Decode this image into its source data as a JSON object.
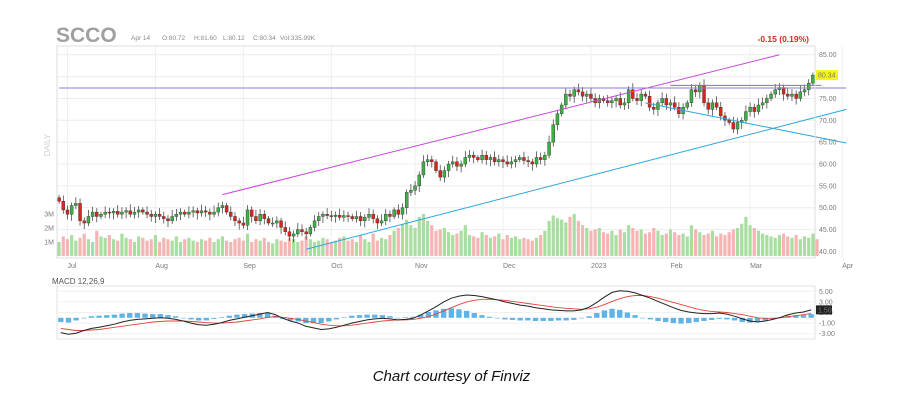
{
  "header": {
    "ticker": "SCCO",
    "date": "Apr 14",
    "open": "O:80.72",
    "high": "H:81.60",
    "low": "L:80.12",
    "close": "C:80.34",
    "volume": "Vol:335.99K",
    "change": "-0.15 (0.19%)",
    "last_price": "80.34",
    "side_label": "DAILY"
  },
  "caption": "Chart courtesy of Finviz",
  "colors": {
    "up": "#3cb043",
    "down": "#d9261c",
    "volume_up": "#a9dea1",
    "volume_down": "#f5b5b5",
    "channel": "#cc44dd",
    "trendline": "#2aa6dd",
    "horizontal": "#8a7fd6",
    "macd": "#222222",
    "signal": "#e0453a",
    "histogram": "#5fb3e6",
    "price_tag": "#f5f514"
  },
  "chart_data": [
    {
      "type": "candlestick",
      "title": "SCCO",
      "ylabel": "",
      "ylim": [
        38.5,
        87
      ],
      "y_ticks": [
        "85.00",
        "80.00",
        "75.00",
        "70.00",
        "65.00",
        "60.00",
        "55.00",
        "50.00",
        "45.00",
        "40.00"
      ],
      "volume_ticks": [
        "3M",
        "2M",
        "1M"
      ],
      "x_ticks": [
        "Jul",
        "Aug",
        "Sep",
        "Oct",
        "Nov",
        "Dec",
        "2023",
        "Feb",
        "Mar",
        "Apr"
      ],
      "x_tick_bars": [
        2,
        23,
        44,
        65,
        85,
        106,
        127,
        146,
        165,
        187
      ],
      "last_price": 80.34,
      "closes": [
        51.5,
        49.5,
        48.5,
        50.5,
        51.0,
        47.0,
        46.5,
        48.0,
        49.0,
        48.0,
        48.5,
        49.0,
        48.8,
        49.2,
        48.5,
        49.0,
        49.3,
        48.5,
        49.0,
        49.5,
        49.0,
        48.5,
        48.0,
        48.5,
        48.0,
        47.5,
        47.0,
        48.0,
        48.5,
        49.0,
        48.5,
        49.0,
        49.3,
        48.8,
        49.3,
        49.0,
        48.5,
        49.0,
        50.0,
        50.5,
        49.0,
        48.0,
        47.0,
        46.5,
        46.0,
        49.5,
        48.0,
        47.0,
        48.5,
        47.5,
        46.5,
        46.5,
        47.0,
        45.5,
        44.5,
        43.5,
        44.0,
        45.0,
        44.5,
        44.0,
        45.5,
        47.0,
        48.0,
        48.5,
        48.2,
        48.0,
        48.3,
        47.8,
        48.2,
        48.0,
        47.5,
        48.0,
        47.0,
        47.8,
        48.5,
        47.5,
        46.5,
        47.0,
        48.5,
        48.0,
        49.5,
        48.5,
        50.0,
        53.5,
        54.0,
        55.0,
        57.5,
        60.5,
        61.0,
        60.5,
        58.5,
        57.0,
        58.5,
        60.0,
        60.5,
        59.5,
        60.0,
        61.5,
        62.0,
        61.5,
        61.0,
        62.0,
        61.0,
        61.5,
        60.5,
        61.0,
        60.5,
        60.0,
        60.5,
        61.0,
        61.5,
        60.8,
        60.5,
        60.0,
        61.5,
        61.0,
        62.0,
        65.0,
        69.0,
        71.5,
        73.5,
        76.0,
        75.5,
        77.0,
        76.5,
        75.5,
        76.0,
        75.0,
        74.0,
        75.0,
        74.5,
        74.0,
        74.5,
        75.0,
        73.5,
        74.0,
        77.0,
        75.0,
        74.5,
        76.0,
        75.5,
        73.0,
        72.5,
        74.0,
        75.0,
        73.5,
        74.0,
        73.0,
        71.5,
        73.0,
        74.0,
        77.0,
        76.5,
        78.0,
        74.0,
        72.5,
        74.0,
        73.0,
        71.0,
        70.0,
        69.5,
        68.0,
        69.5,
        70.0,
        72.0,
        73.0,
        72.0,
        73.5,
        74.0,
        75.0,
        76.0,
        77.0,
        77.5,
        76.0,
        75.5,
        76.0,
        75.0,
        76.5,
        77.0,
        78.5,
        80.34
      ],
      "volumes": [
        1.0,
        1.4,
        1.2,
        1.5,
        1.1,
        1.3,
        1.6,
        1.2,
        1.0,
        1.8,
        1.4,
        1.3,
        1.5,
        1.2,
        1.1,
        1.6,
        1.3,
        1.2,
        1.0,
        1.4,
        1.3,
        1.1,
        1.2,
        1.5,
        1.0,
        1.3,
        1.2,
        1.1,
        1.4,
        1.0,
        1.2,
        1.3,
        1.1,
        1.0,
        1.2,
        1.1,
        1.3,
        1.0,
        1.2,
        1.4,
        1.1,
        1.0,
        1.2,
        1.3,
        1.1,
        1.6,
        1.0,
        1.2,
        1.1,
        1.3,
        1.0,
        0.9,
        1.2,
        1.1,
        1.0,
        1.3,
        1.2,
        1.0,
        1.1,
        1.4,
        1.2,
        1.0,
        1.1,
        1.3,
        1.2,
        1.0,
        1.1,
        1.3,
        1.4,
        1.1,
        1.2,
        1.0,
        1.5,
        1.2,
        1.0,
        1.6,
        1.1,
        1.3,
        1.2,
        1.5,
        1.8,
        2.0,
        2.3,
        2.6,
        2.2,
        2.0,
        2.8,
        3.0,
        2.5,
        2.2,
        1.8,
        1.9,
        2.0,
        1.7,
        1.5,
        1.6,
        1.8,
        2.2,
        1.5,
        1.4,
        1.3,
        1.7,
        1.5,
        1.3,
        1.4,
        1.6,
        1.2,
        1.5,
        1.3,
        1.4,
        1.2,
        1.3,
        1.2,
        1.1,
        1.3,
        1.5,
        1.8,
        2.5,
        2.9,
        2.7,
        2.6,
        2.4,
        2.8,
        3.0,
        2.5,
        2.2,
        2.0,
        1.8,
        1.9,
        2.0,
        1.7,
        1.6,
        1.8,
        1.5,
        1.9,
        1.7,
        2.2,
        2.0,
        1.8,
        1.9,
        1.6,
        1.7,
        2.0,
        1.8,
        1.5,
        1.6,
        1.9,
        1.7,
        1.5,
        1.6,
        1.4,
        2.2,
        1.9,
        1.7,
        1.5,
        1.6,
        1.8,
        1.4,
        1.6,
        1.5,
        1.7,
        1.9,
        2.0,
        2.3,
        2.8,
        2.2,
        2.0,
        1.8,
        1.6,
        1.5,
        1.4,
        1.3,
        1.5,
        1.6,
        1.4,
        1.3,
        1.5,
        1.2,
        1.4,
        1.3,
        1.6,
        1.2
      ],
      "lines": [
        {
          "kind": "channel-upper",
          "from": [
            39,
            53.0
          ],
          "to": [
            172,
            85.0
          ]
        },
        {
          "kind": "channel-lower",
          "from": [
            59,
            40.5
          ],
          "to": [
            188,
            72.5
          ]
        },
        {
          "kind": "horizontal",
          "from": [
            0,
            77.4
          ],
          "to": [
            188,
            77.4
          ]
        },
        {
          "kind": "flag-resistance",
          "from": [
            146,
            78.0
          ],
          "to": [
            182,
            78.0
          ]
        },
        {
          "kind": "flag-support",
          "from": [
            140,
            74.0
          ],
          "to": [
            188,
            64.8
          ]
        }
      ]
    },
    {
      "type": "line",
      "title": "MACD 12,26,9",
      "y_ticks": [
        "5.00",
        "3.00",
        "1.00",
        "-1.00",
        "-3.00"
      ],
      "ylim": [
        -4,
        6
      ],
      "last_value": "1.50",
      "macd": [
        -2.8,
        -3.1,
        -2.9,
        -2.4,
        -2.0,
        -1.8,
        -1.5,
        -1.2,
        -0.8,
        -0.5,
        -0.3,
        -0.2,
        -0.1,
        0.0,
        -0.1,
        -0.3,
        -0.6,
        -1.0,
        -1.3,
        -1.4,
        -1.2,
        -0.9,
        -0.5,
        -0.2,
        0.1,
        0.4,
        0.7,
        1.0,
        0.6,
        -0.1,
        -0.6,
        -1.0,
        -1.6,
        -1.9,
        -2.2,
        -2.1,
        -1.8,
        -1.4,
        -1.0,
        -0.7,
        -0.4,
        -0.2,
        -0.1,
        -0.2,
        -0.4,
        -0.3,
        -0.1,
        0.5,
        1.3,
        2.1,
        3.0,
        3.7,
        4.1,
        4.3,
        4.2,
        4.0,
        3.7,
        3.4,
        3.0,
        2.7,
        2.4,
        2.2,
        1.9,
        1.7,
        1.5,
        1.4,
        1.3,
        1.3,
        1.5,
        2.0,
        2.9,
        3.9,
        4.8,
        5.1,
        5.0,
        4.7,
        4.2,
        3.7,
        3.1,
        2.5,
        1.9,
        1.4,
        1.1,
        0.9,
        0.8,
        0.8,
        0.9,
        0.7,
        0.3,
        -0.2,
        -0.6,
        -0.8,
        -0.6,
        -0.3,
        0.1,
        0.6,
        0.9,
        1.1,
        1.5
      ],
      "signal": [
        -2.0,
        -2.2,
        -2.4,
        -2.4,
        -2.3,
        -2.2,
        -2.0,
        -1.8,
        -1.6,
        -1.4,
        -1.2,
        -1.0,
        -0.8,
        -0.7,
        -0.6,
        -0.6,
        -0.6,
        -0.7,
        -0.8,
        -0.9,
        -1.0,
        -1.0,
        -0.9,
        -0.8,
        -0.6,
        -0.4,
        -0.2,
        0.1,
        0.2,
        0.1,
        -0.1,
        -0.3,
        -0.6,
        -0.9,
        -1.2,
        -1.4,
        -1.5,
        -1.5,
        -1.4,
        -1.2,
        -1.0,
        -0.8,
        -0.6,
        -0.5,
        -0.4,
        -0.4,
        -0.3,
        -0.1,
        0.2,
        0.7,
        1.3,
        1.9,
        2.5,
        3.0,
        3.3,
        3.5,
        3.5,
        3.4,
        3.3,
        3.1,
        2.9,
        2.7,
        2.5,
        2.3,
        2.1,
        1.9,
        1.8,
        1.7,
        1.6,
        1.7,
        2.0,
        2.5,
        3.1,
        3.6,
        4.0,
        4.2,
        4.2,
        4.0,
        3.7,
        3.3,
        2.9,
        2.5,
        2.1,
        1.7,
        1.4,
        1.2,
        1.1,
        1.0,
        0.8,
        0.6,
        0.3,
        0.0,
        -0.1,
        -0.1,
        0.0,
        0.2,
        0.4,
        0.6,
        0.8
      ],
      "histogram": [
        -0.8,
        -0.9,
        -0.5,
        0.0,
        0.3,
        0.4,
        0.5,
        0.6,
        0.8,
        0.9,
        0.9,
        0.8,
        0.7,
        0.7,
        0.5,
        0.3,
        0.0,
        -0.3,
        -0.5,
        -0.5,
        -0.2,
        0.1,
        0.4,
        0.6,
        0.7,
        0.8,
        0.9,
        0.9,
        0.4,
        -0.2,
        -0.5,
        -0.7,
        -1.0,
        -1.0,
        -1.0,
        -0.7,
        -0.3,
        0.1,
        0.4,
        0.5,
        0.6,
        0.6,
        0.5,
        0.3,
        0.0,
        0.1,
        0.2,
        0.6,
        1.1,
        1.4,
        1.7,
        1.8,
        1.6,
        1.3,
        0.9,
        0.5,
        0.2,
        0.0,
        -0.3,
        -0.4,
        -0.5,
        -0.5,
        -0.6,
        -0.6,
        -0.6,
        -0.5,
        -0.5,
        -0.4,
        -0.1,
        0.3,
        0.9,
        1.4,
        1.7,
        1.5,
        1.0,
        0.5,
        0.0,
        -0.3,
        -0.6,
        -0.8,
        -1.0,
        -1.1,
        -1.0,
        -0.8,
        -0.6,
        -0.4,
        -0.2,
        -0.3,
        -0.5,
        -0.8,
        -0.9,
        -0.8,
        -0.5,
        -0.2,
        0.1,
        0.4,
        0.5,
        0.5,
        0.7
      ]
    }
  ]
}
